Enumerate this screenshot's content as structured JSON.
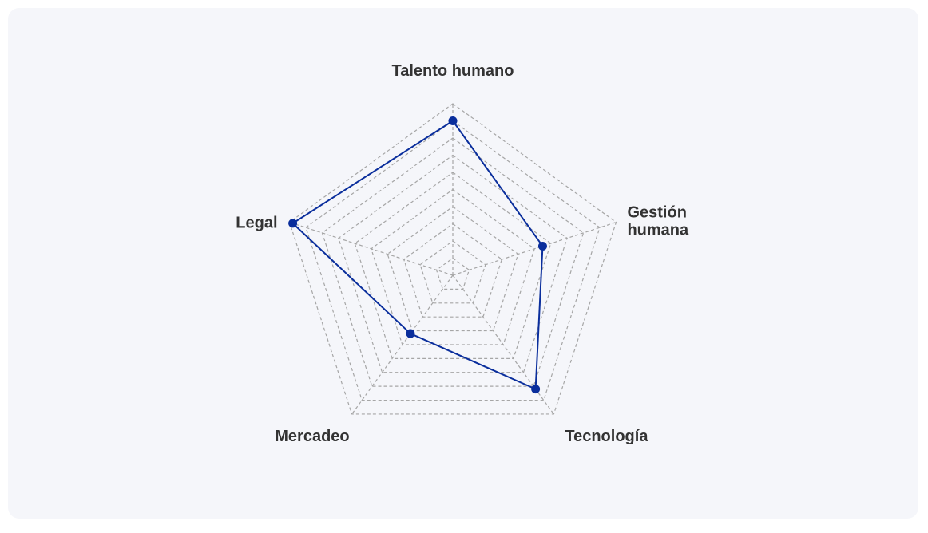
{
  "chart_data": {
    "type": "radar",
    "axes": [
      "Talento humano",
      "Gestión humana",
      "Tecnología",
      "Mercadeo",
      "Legal"
    ],
    "series": [
      {
        "values": [
          9,
          5.5,
          8.2,
          4.2,
          9.8
        ]
      }
    ],
    "rlim": [
      0,
      10
    ],
    "grid_levels": 10,
    "grid": true,
    "colors": {
      "series": "#0a2e9c",
      "grid": "#a6a6a6",
      "label": "#333333",
      "background": "#f5f6fa"
    }
  }
}
